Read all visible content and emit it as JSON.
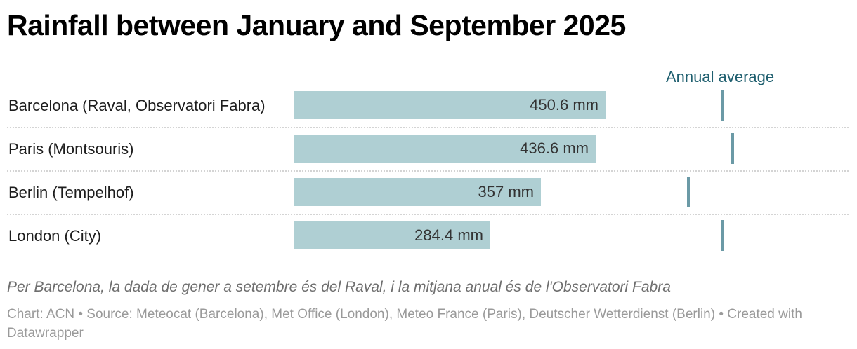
{
  "chart_data": {
    "type": "bar",
    "orientation": "horizontal",
    "title": "Rainfall between January and September 2025",
    "categories": [
      "Barcelona (Raval, Observatori Fabra)",
      "Paris (Montsouris)",
      "Berlin (Tempelhof)",
      "London (City)"
    ],
    "values": [
      450.6,
      436.6,
      357,
      284.4
    ],
    "value_labels": [
      "450.6 mm",
      "436.6 mm",
      "357 mm",
      "284.4 mm"
    ],
    "unit": "mm",
    "reference_markers": {
      "name": "Annual average",
      "values": [
        620,
        634,
        570,
        620
      ]
    },
    "xlim": [
      0,
      800
    ],
    "bar_color": "#afcfd3",
    "marker_color": "#6b9aa6",
    "legend_color": "#1f5f6f",
    "note": "Per Barcelona, la dada de gener a setembre és del Raval, i la mitjana anual és de l'Observatori Fabra",
    "source": "Chart: ACN • Source: Meteocat (Barcelona), Met Office (London), Meteo France (Paris), Deutscher Wetterdienst (Berlin) • Created with Datawrapper"
  }
}
